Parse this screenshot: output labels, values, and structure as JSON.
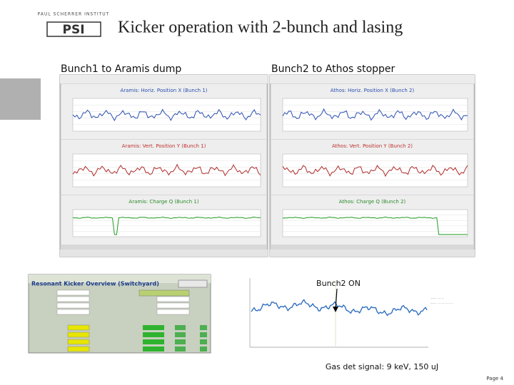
{
  "header": {
    "logo_text": "PAUL SCHERRER INSTITUT",
    "logo_mark": "PSI",
    "title": "Kicker operation with 2-bunch and lasing"
  },
  "columns": [
    {
      "heading": "Bunch1 to Aramis dump",
      "panels": [
        "Aramis: Horiz. Position X (Bunch 1)",
        "Aramis: Vert. Position Y (Bunch 1)",
        "Aramis: Charge Q (Bunch 1)"
      ]
    },
    {
      "heading": "Bunch2 to Athos stopper",
      "panels": [
        "Athos: Horiz. Position X (Bunch 2)",
        "Athos: Vert. Position Y (Bunch 2)",
        "Athos: Charge Q (Bunch 2)"
      ]
    }
  ],
  "kicker": {
    "title": "Resonant Kicker Overview (Switchyard)"
  },
  "annotation": "Bunch2 ON",
  "caption": "Gas det signal: 9 keV, 150 uJ",
  "footer": "Page 4"
}
